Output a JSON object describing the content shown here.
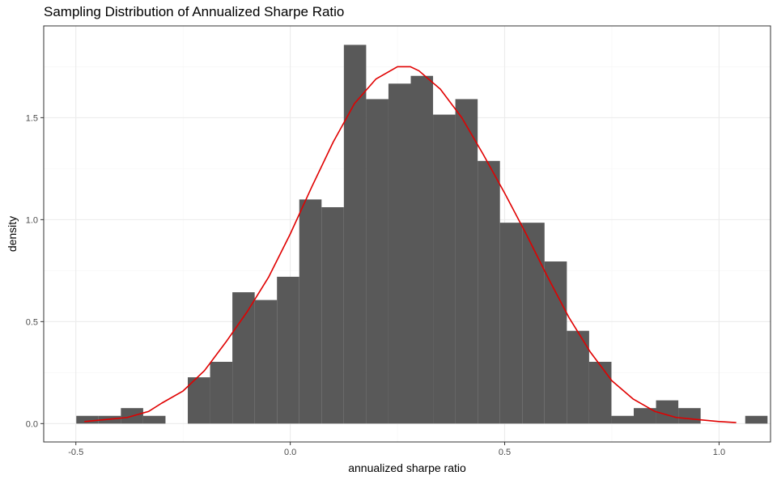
{
  "chart_data": {
    "type": "bar",
    "title": "Sampling Distribution of Annualized Sharpe Ratio",
    "xlabel": "annualized sharpe ratio",
    "ylabel": "density",
    "xlim": [
      -0.575,
      1.12
    ],
    "ylim": [
      -0.09,
      1.95
    ],
    "x_ticks": [
      -0.5,
      0.0,
      0.5,
      1.0
    ],
    "x_tick_labels": [
      "-0.5",
      "0.0",
      "0.5",
      "1.0"
    ],
    "y_ticks": [
      0.0,
      0.5,
      1.0,
      1.5
    ],
    "y_tick_labels": [
      "0.0",
      "0.5",
      "1.0",
      "1.5"
    ],
    "grid": true,
    "bin_width": 0.052,
    "bins": [
      {
        "x0": -0.499,
        "x1": -0.447,
        "density": 0.038
      },
      {
        "x0": -0.447,
        "x1": -0.395,
        "density": 0.038
      },
      {
        "x0": -0.395,
        "x1": -0.343,
        "density": 0.076
      },
      {
        "x0": -0.343,
        "x1": -0.291,
        "density": 0.038
      },
      {
        "x0": -0.291,
        "x1": -0.239,
        "density": 0.0
      },
      {
        "x0": -0.239,
        "x1": -0.187,
        "density": 0.227
      },
      {
        "x0": -0.187,
        "x1": -0.135,
        "density": 0.303
      },
      {
        "x0": -0.135,
        "x1": -0.083,
        "density": 0.644
      },
      {
        "x0": -0.083,
        "x1": -0.031,
        "density": 0.606
      },
      {
        "x0": -0.031,
        "x1": 0.021,
        "density": 0.72
      },
      {
        "x0": 0.021,
        "x1": 0.073,
        "density": 1.099
      },
      {
        "x0": 0.073,
        "x1": 0.125,
        "density": 1.061
      },
      {
        "x0": 0.125,
        "x1": 0.177,
        "density": 1.857
      },
      {
        "x0": 0.177,
        "x1": 0.229,
        "density": 1.591
      },
      {
        "x0": 0.229,
        "x1": 0.281,
        "density": 1.667
      },
      {
        "x0": 0.281,
        "x1": 0.333,
        "density": 1.705
      },
      {
        "x0": 0.333,
        "x1": 0.385,
        "density": 1.515
      },
      {
        "x0": 0.385,
        "x1": 0.437,
        "density": 1.591
      },
      {
        "x0": 0.437,
        "x1": 0.489,
        "density": 1.288
      },
      {
        "x0": 0.489,
        "x1": 0.541,
        "density": 0.985
      },
      {
        "x0": 0.541,
        "x1": 0.593,
        "density": 0.985
      },
      {
        "x0": 0.593,
        "x1": 0.645,
        "density": 0.795
      },
      {
        "x0": 0.645,
        "x1": 0.697,
        "density": 0.455
      },
      {
        "x0": 0.697,
        "x1": 0.749,
        "density": 0.303
      },
      {
        "x0": 0.749,
        "x1": 0.801,
        "density": 0.038
      },
      {
        "x0": 0.801,
        "x1": 0.853,
        "density": 0.076
      },
      {
        "x0": 0.853,
        "x1": 0.905,
        "density": 0.114
      },
      {
        "x0": 0.905,
        "x1": 0.957,
        "density": 0.076
      },
      {
        "x0": 0.957,
        "x1": 1.009,
        "density": 0.0
      },
      {
        "x0": 1.009,
        "x1": 1.061,
        "density": 0.0
      },
      {
        "x0": 1.061,
        "x1": 1.113,
        "density": 0.038
      }
    ],
    "bar_color": "#595959",
    "density_curve": {
      "color": "#e00000",
      "points": [
        [
          -0.48,
          0.01
        ],
        [
          -0.43,
          0.02
        ],
        [
          -0.38,
          0.03
        ],
        [
          -0.33,
          0.06
        ],
        [
          -0.3,
          0.1
        ],
        [
          -0.25,
          0.16
        ],
        [
          -0.2,
          0.26
        ],
        [
          -0.15,
          0.4
        ],
        [
          -0.1,
          0.55
        ],
        [
          -0.05,
          0.72
        ],
        [
          0.0,
          0.93
        ],
        [
          0.05,
          1.16
        ],
        [
          0.1,
          1.38
        ],
        [
          0.15,
          1.57
        ],
        [
          0.2,
          1.69
        ],
        [
          0.25,
          1.75
        ],
        [
          0.28,
          1.75
        ],
        [
          0.3,
          1.73
        ],
        [
          0.35,
          1.64
        ],
        [
          0.4,
          1.5
        ],
        [
          0.45,
          1.32
        ],
        [
          0.5,
          1.13
        ],
        [
          0.55,
          0.93
        ],
        [
          0.6,
          0.72
        ],
        [
          0.65,
          0.52
        ],
        [
          0.7,
          0.35
        ],
        [
          0.75,
          0.21
        ],
        [
          0.8,
          0.12
        ],
        [
          0.85,
          0.06
        ],
        [
          0.9,
          0.03
        ],
        [
          0.95,
          0.02
        ],
        [
          1.0,
          0.01
        ],
        [
          1.04,
          0.005
        ]
      ]
    },
    "colors": {
      "panel_border": "#333333",
      "grid_major": "#ebebeb",
      "grid_minor": "#f5f5f5",
      "background": "#ffffff"
    }
  }
}
